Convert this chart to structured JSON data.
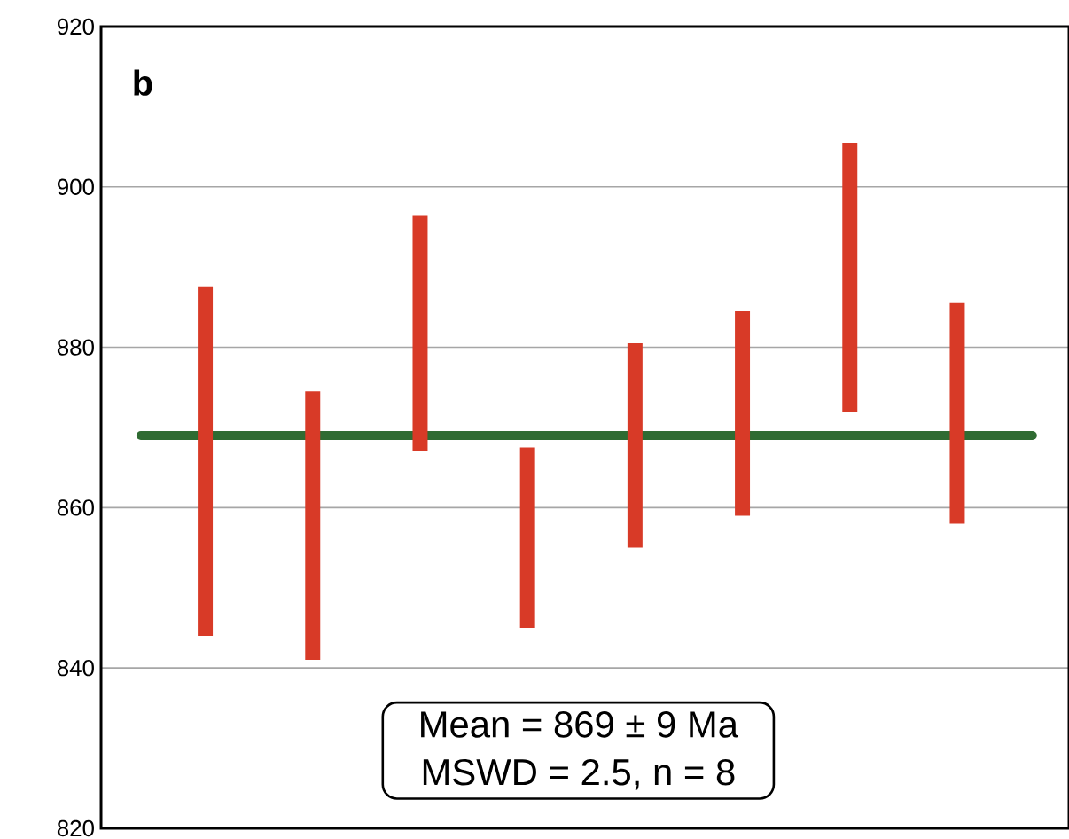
{
  "chart_data": {
    "type": "bar",
    "categories": [
      null,
      null,
      null,
      null,
      null,
      null,
      null,
      null
    ],
    "base": [
      844,
      841,
      867,
      845,
      855,
      859,
      872,
      858
    ],
    "values": [
      43.5,
      33.5,
      29.5,
      22.5,
      25.5,
      25.5,
      33.5,
      27.5
    ],
    "color": "#d83a27",
    "ylim": [
      820,
      920
    ],
    "yticks": [
      820,
      840,
      860,
      880,
      900,
      920
    ],
    "grid": "y",
    "ref_lines": [
      {
        "axis": "y",
        "value": 869,
        "color": "#2f6b32"
      }
    ],
    "annotations": [
      "b",
      "Mean = 869 ± 9 Ma",
      "MSWD = 2.5, n = 8"
    ]
  }
}
